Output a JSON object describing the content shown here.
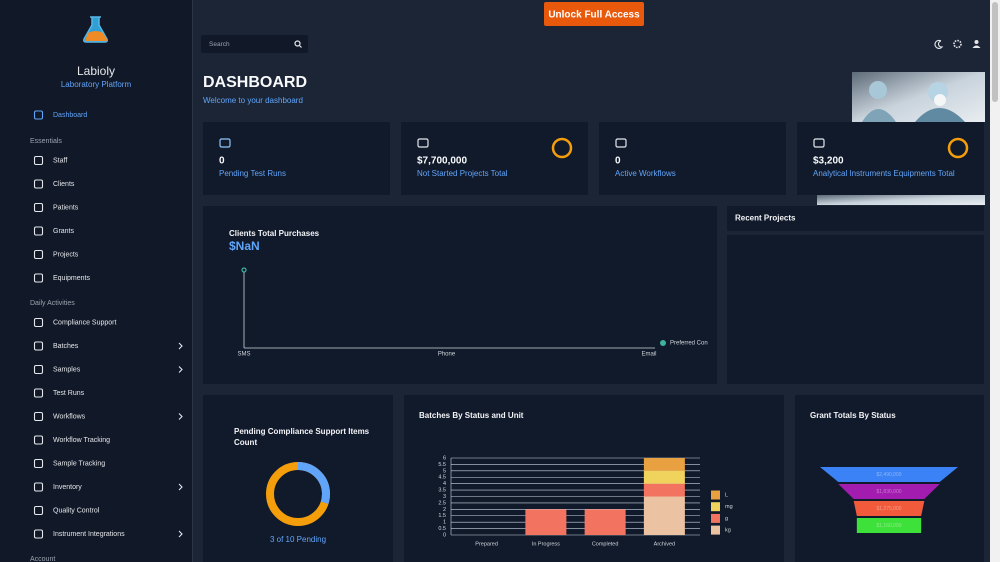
{
  "banner": {
    "button": "Unlock Full Access"
  },
  "sidebar": {
    "brand": "Labioly",
    "tagline": "Laboratory Platform",
    "home": {
      "label": "Dashboard"
    },
    "sections": [
      {
        "title": "Essentials",
        "items": [
          {
            "label": "Staff"
          },
          {
            "label": "Clients"
          },
          {
            "label": "Patients"
          },
          {
            "label": "Grants"
          },
          {
            "label": "Projects"
          },
          {
            "label": "Equipments"
          }
        ]
      },
      {
        "title": "Daily Activities",
        "items": [
          {
            "label": "Compliance Support"
          },
          {
            "label": "Batches",
            "submenu": true
          },
          {
            "label": "Samples",
            "submenu": true
          },
          {
            "label": "Test Runs"
          },
          {
            "label": "Workflows",
            "submenu": true
          },
          {
            "label": "Workflow Tracking"
          },
          {
            "label": "Sample Tracking"
          },
          {
            "label": "Inventory",
            "submenu": true
          },
          {
            "label": "Quality Control"
          },
          {
            "label": "Instrument Integrations",
            "submenu": true
          }
        ]
      },
      {
        "title": "Account",
        "items": []
      }
    ]
  },
  "topbar": {
    "search_placeholder": "Search"
  },
  "header": {
    "title": "DASHBOARD",
    "subtitle": "Welcome to your dashboard"
  },
  "stats": [
    {
      "value": "0",
      "label": "Pending Test Runs"
    },
    {
      "value": "$7,700,000",
      "label": "Not Started Projects Total"
    },
    {
      "value": "0",
      "label": "Active Workflows"
    },
    {
      "value": "$3,200",
      "label": "Analytical Instruments Equipments Total"
    }
  ],
  "recent_projects": {
    "title": "Recent Projects"
  },
  "chart_data": [
    {
      "type": "line",
      "title": "Clients Total Purchases",
      "total_label": "$NaN",
      "categories": [
        "SMS",
        "Phone",
        "Email"
      ],
      "series": [
        {
          "name": "Preferred Con",
          "color": "#3fb39b"
        }
      ]
    },
    {
      "type": "donut",
      "title": "Pending Compliance Support Items Count",
      "value": 3,
      "total": 10,
      "label": "3 of 10 Pending",
      "colors": [
        "#60a5fa",
        "#f59e0b"
      ]
    },
    {
      "type": "bar",
      "stacked": true,
      "title": "Batches By Status and Unit",
      "categories": [
        "Prepared",
        "In Progress",
        "Completed",
        "Archived"
      ],
      "series": [
        {
          "name": "L",
          "color": "#e8a040",
          "values": [
            0,
            0,
            0,
            1
          ]
        },
        {
          "name": "mg",
          "color": "#efd35c",
          "values": [
            0,
            0,
            0,
            1
          ]
        },
        {
          "name": "g",
          "color": "#f2735f",
          "values": [
            0,
            2,
            2,
            1
          ]
        },
        {
          "name": "kg",
          "color": "#ebc2a2",
          "values": [
            0,
            0,
            0,
            3
          ]
        }
      ],
      "ylim": [
        0,
        6
      ],
      "yticks": [
        0,
        0.5,
        1,
        1.5,
        2,
        2.5,
        3,
        3.5,
        4,
        4.5,
        5,
        5.5,
        6
      ],
      "grid": true
    },
    {
      "type": "funnel",
      "title": "Grant Totals By Status",
      "values": [
        2490000,
        1830000,
        1275000,
        1160000
      ],
      "value_labels": [
        "$2,490,000",
        "$1,830,000",
        "$1,275,000",
        "$1,160,000"
      ],
      "colors": [
        "#3b82f6",
        "#a21caf",
        "#f15a3a",
        "#3ee03a"
      ]
    }
  ]
}
